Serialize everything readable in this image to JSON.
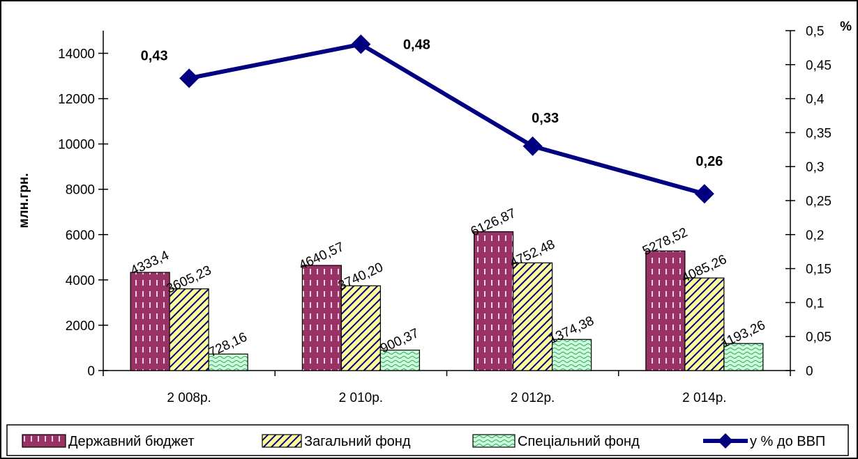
{
  "chart_data": {
    "type": "bar",
    "categories": [
      "2 008р.",
      "2 010р.",
      "2 012р.",
      "2 014р."
    ],
    "ylabel": "млн.грн.",
    "y2label": "%",
    "ylim": [
      0,
      15000
    ],
    "y2lim": [
      0,
      0.5
    ],
    "yticks": [
      "0",
      "2000",
      "4000",
      "6000",
      "8000",
      "10000",
      "12000",
      "14000"
    ],
    "y2ticks": [
      "0",
      "0,05",
      "0,1",
      "0,15",
      "0,2",
      "0,25",
      "0,3",
      "0,35",
      "0,4",
      "0,45",
      "0,5"
    ],
    "grid": false,
    "legend_position": "bottom",
    "series": [
      {
        "name": "Державний бюджет",
        "type": "bar",
        "axis": "left",
        "color": "#993366",
        "values": [
          4333.4,
          4640.57,
          6126.87,
          5278.52
        ],
        "labels": [
          "4333,4",
          "4640,57",
          "6126,87",
          "5278,52"
        ]
      },
      {
        "name": "Загальний фонд",
        "type": "bar",
        "axis": "left",
        "color": "#FFFF99",
        "values": [
          3605.23,
          3740.2,
          4752.48,
          4085.26
        ],
        "labels": [
          "3605,23",
          "3740,20",
          "4752,48",
          "4085,26"
        ]
      },
      {
        "name": "Спеціальний фонд",
        "type": "bar",
        "axis": "left",
        "color": "#CCFFCC",
        "values": [
          728.16,
          900.37,
          1374.38,
          1193.26
        ],
        "labels": [
          "728,16",
          "900,37",
          "1374,38",
          "1193,26"
        ]
      },
      {
        "name": "у % до ВВП",
        "type": "line",
        "axis": "right",
        "color": "#000080",
        "values": [
          0.43,
          0.48,
          0.33,
          0.26
        ],
        "labels": [
          "0,43",
          "0,48",
          "0,33",
          "0,26"
        ]
      }
    ]
  }
}
